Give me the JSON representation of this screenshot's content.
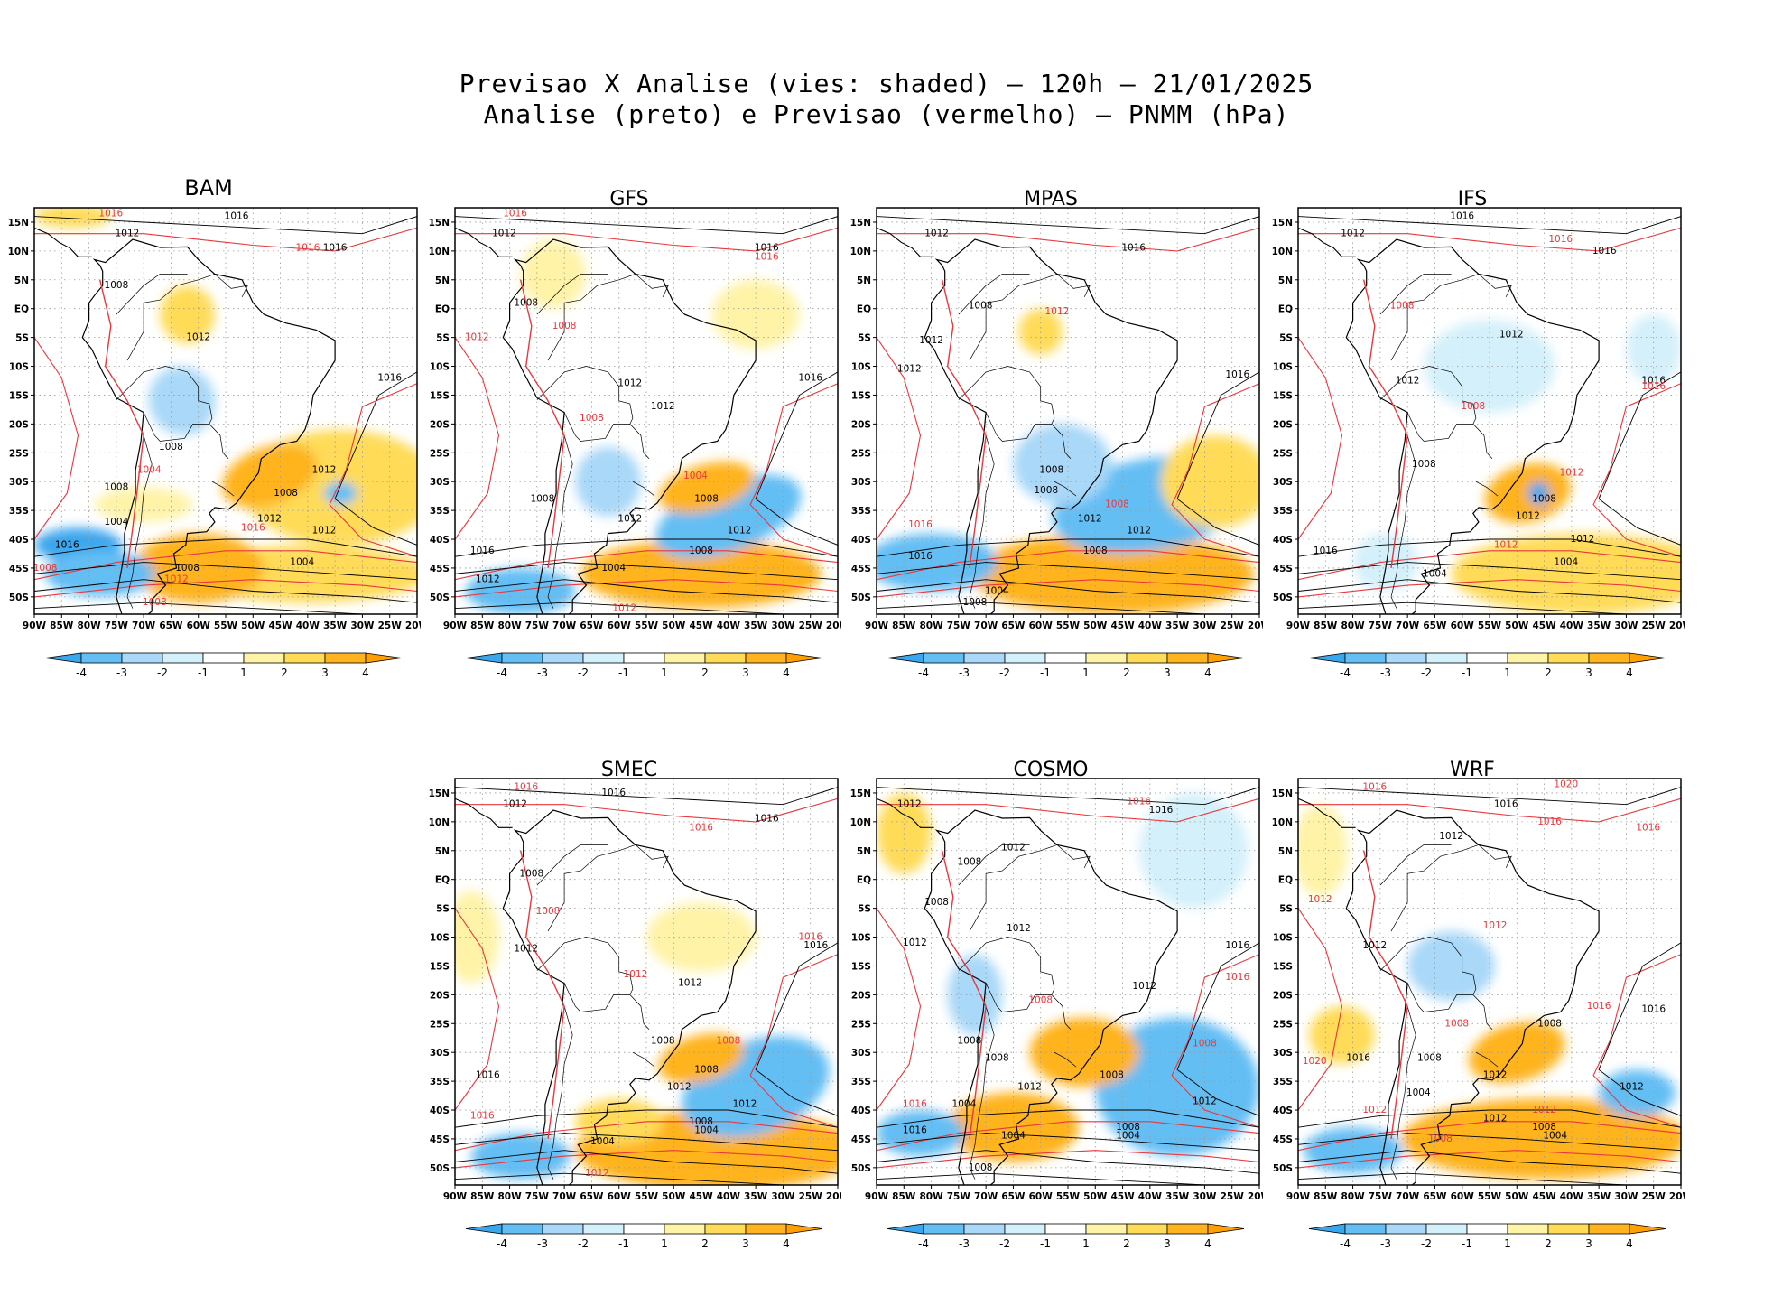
{
  "figure": {
    "title_line1": "Previsao X Analise (vies: shaded) – 120h – 21/01/2025",
    "title_line2": "Analise (preto) e Previsao (vermelho) – PNMM (hPa)"
  },
  "chart_data": {
    "type": "map-panels",
    "variable": "PNMM (hPa)",
    "shading": "vies (forecast minus analysis), hPa",
    "analysis_contours_color": "#000000",
    "forecast_contours_color": "#e8383d",
    "lat_ticks": [
      "15N",
      "10N",
      "5N",
      "EQ",
      "5S",
      "10S",
      "15S",
      "20S",
      "25S",
      "30S",
      "35S",
      "40S",
      "45S",
      "50S"
    ],
    "lon_ticks": [
      "90W",
      "85W",
      "80W",
      "75W",
      "70W",
      "65W",
      "60W",
      "55W",
      "50W",
      "45W",
      "40W",
      "35W",
      "30W",
      "25W",
      "20W"
    ],
    "colorbar": {
      "labels": [
        "-4",
        "-3",
        "-2",
        "-1",
        "1",
        "2",
        "3",
        "4"
      ],
      "colors": [
        "#3aa6ee",
        "#64bef4",
        "#a9d8f8",
        "#d4f0fb",
        "#ffffff",
        "#fff3a8",
        "#ffdb58",
        "#ffb31e",
        "#ffa000"
      ]
    },
    "panels": [
      {
        "name": "BAM",
        "labels": [
          {
            "t": "1016",
            "lon": -76,
            "lat": 16.5,
            "c": "r"
          },
          {
            "t": "1012",
            "lon": -73,
            "lat": 13,
            "c": "k"
          },
          {
            "t": "1016",
            "lon": -53,
            "lat": 16,
            "c": "k"
          },
          {
            "t": "1016",
            "lon": -40,
            "lat": 10.5,
            "c": "r"
          },
          {
            "t": "1016",
            "lon": -35,
            "lat": 10.5,
            "c": "k"
          },
          {
            "t": "1008",
            "lon": -75,
            "lat": 4,
            "c": "k"
          },
          {
            "t": "1012",
            "lon": -60,
            "lat": -5,
            "c": "k"
          },
          {
            "t": "1016",
            "lon": -25,
            "lat": -12,
            "c": "k"
          },
          {
            "t": "1008",
            "lon": -65,
            "lat": -24,
            "c": "k"
          },
          {
            "t": "1004",
            "lon": -69,
            "lat": -28,
            "c": "r"
          },
          {
            "t": "1012",
            "lon": -37,
            "lat": -28,
            "c": "k"
          },
          {
            "t": "1008",
            "lon": -44,
            "lat": -32,
            "c": "k"
          },
          {
            "t": "1008",
            "lon": -75,
            "lat": -31,
            "c": "k"
          },
          {
            "t": "1004",
            "lon": -75,
            "lat": -37,
            "c": "k"
          },
          {
            "t": "1012",
            "lon": -47,
            "lat": -36.5,
            "c": "k"
          },
          {
            "t": "1016",
            "lon": -50,
            "lat": -38,
            "c": "r"
          },
          {
            "t": "1012",
            "lon": -37,
            "lat": -38.5,
            "c": "k"
          },
          {
            "t": "1016",
            "lon": -84,
            "lat": -41,
            "c": "k"
          },
          {
            "t": "1008",
            "lon": -88,
            "lat": -45,
            "c": "r"
          },
          {
            "t": "1008",
            "lon": -62,
            "lat": -45,
            "c": "k"
          },
          {
            "t": "1012",
            "lon": -64,
            "lat": -47,
            "c": "r"
          },
          {
            "t": "1004",
            "lon": -41,
            "lat": -44,
            "c": "k"
          },
          {
            "t": "1008",
            "lon": -68,
            "lat": -51,
            "c": "r"
          }
        ]
      },
      {
        "name": "GFS",
        "labels": [
          {
            "t": "1016",
            "lon": -79,
            "lat": 16.5,
            "c": "r"
          },
          {
            "t": "1012",
            "lon": -81,
            "lat": 13,
            "c": "k"
          },
          {
            "t": "1016",
            "lon": -33,
            "lat": 10.5,
            "c": "k"
          },
          {
            "t": "1016",
            "lon": -33,
            "lat": 9,
            "c": "r"
          },
          {
            "t": "1012",
            "lon": -86,
            "lat": -5,
            "c": "r"
          },
          {
            "t": "1008",
            "lon": -77,
            "lat": 1,
            "c": "k"
          },
          {
            "t": "1008",
            "lon": -70,
            "lat": -3,
            "c": "r"
          },
          {
            "t": "1012",
            "lon": -58,
            "lat": -13,
            "c": "k"
          },
          {
            "t": "1012",
            "lon": -52,
            "lat": -17,
            "c": "k"
          },
          {
            "t": "1016",
            "lon": -25,
            "lat": -12,
            "c": "k"
          },
          {
            "t": "1008",
            "lon": -65,
            "lat": -19,
            "c": "r"
          },
          {
            "t": "1004",
            "lon": -46,
            "lat": -29,
            "c": "r"
          },
          {
            "t": "1008",
            "lon": -44,
            "lat": -33,
            "c": "k"
          },
          {
            "t": "1008",
            "lon": -74,
            "lat": -33,
            "c": "k"
          },
          {
            "t": "1012",
            "lon": -58,
            "lat": -36.5,
            "c": "k"
          },
          {
            "t": "1012",
            "lon": -38,
            "lat": -38.5,
            "c": "k"
          },
          {
            "t": "1016",
            "lon": -85,
            "lat": -42,
            "c": "k"
          },
          {
            "t": "1008",
            "lon": -45,
            "lat": -42,
            "c": "k"
          },
          {
            "t": "1004",
            "lon": -61,
            "lat": -45,
            "c": "k"
          },
          {
            "t": "1012",
            "lon": -84,
            "lat": -47,
            "c": "k"
          },
          {
            "t": "1012",
            "lon": -59,
            "lat": -52,
            "c": "r"
          }
        ]
      },
      {
        "name": "MPAS",
        "labels": [
          {
            "t": "1012",
            "lon": -79,
            "lat": 13,
            "c": "k"
          },
          {
            "t": "1016",
            "lon": -43,
            "lat": 10.5,
            "c": "k"
          },
          {
            "t": "1008",
            "lon": -71,
            "lat": 0.5,
            "c": "k"
          },
          {
            "t": "1012",
            "lon": -80,
            "lat": -5.5,
            "c": "k"
          },
          {
            "t": "1012",
            "lon": -84,
            "lat": -10.5,
            "c": "k"
          },
          {
            "t": "1012",
            "lon": -57,
            "lat": -0.5,
            "c": "r"
          },
          {
            "t": "1016",
            "lon": -24,
            "lat": -11.5,
            "c": "k"
          },
          {
            "t": "1008",
            "lon": -58,
            "lat": -28,
            "c": "k"
          },
          {
            "t": "1008",
            "lon": -59,
            "lat": -31.5,
            "c": "k"
          },
          {
            "t": "1008",
            "lon": -46,
            "lat": -34,
            "c": "r"
          },
          {
            "t": "1012",
            "lon": -51,
            "lat": -36.5,
            "c": "k"
          },
          {
            "t": "1012",
            "lon": -42,
            "lat": -38.5,
            "c": "k"
          },
          {
            "t": "1016",
            "lon": -82,
            "lat": -37.5,
            "c": "r"
          },
          {
            "t": "1016",
            "lon": -82,
            "lat": -43,
            "c": "k"
          },
          {
            "t": "1008",
            "lon": -50,
            "lat": -42,
            "c": "k"
          },
          {
            "t": "1004",
            "lon": -68,
            "lat": -49,
            "c": "k"
          },
          {
            "t": "1008",
            "lon": -72,
            "lat": -51,
            "c": "k"
          }
        ]
      },
      {
        "name": "IFS",
        "labels": [
          {
            "t": "1016",
            "lon": -60,
            "lat": 16,
            "c": "k"
          },
          {
            "t": "1012",
            "lon": -80,
            "lat": 13,
            "c": "k"
          },
          {
            "t": "1016",
            "lon": -42,
            "lat": 12,
            "c": "r"
          },
          {
            "t": "1016",
            "lon": -34,
            "lat": 10,
            "c": "k"
          },
          {
            "t": "1008",
            "lon": -71,
            "lat": 0.5,
            "c": "r"
          },
          {
            "t": "1012",
            "lon": -51,
            "lat": -4.5,
            "c": "k"
          },
          {
            "t": "1012",
            "lon": -70,
            "lat": -12.5,
            "c": "k"
          },
          {
            "t": "1016",
            "lon": -25,
            "lat": -12.5,
            "c": "k"
          },
          {
            "t": "1016",
            "lon": -25,
            "lat": -13.5,
            "c": "r"
          },
          {
            "t": "1008",
            "lon": -58,
            "lat": -17,
            "c": "r"
          },
          {
            "t": "1008",
            "lon": -67,
            "lat": -27,
            "c": "k"
          },
          {
            "t": "1012",
            "lon": -40,
            "lat": -28.5,
            "c": "r"
          },
          {
            "t": "1008",
            "lon": -45,
            "lat": -33,
            "c": "k"
          },
          {
            "t": "1012",
            "lon": -48,
            "lat": -36,
            "c": "k"
          },
          {
            "t": "1012",
            "lon": -38,
            "lat": -40,
            "c": "k"
          },
          {
            "t": "1012",
            "lon": -52,
            "lat": -41,
            "c": "r"
          },
          {
            "t": "1016",
            "lon": -85,
            "lat": -42,
            "c": "k"
          },
          {
            "t": "1004",
            "lon": -65,
            "lat": -46,
            "c": "k"
          },
          {
            "t": "1004",
            "lon": -41,
            "lat": -44,
            "c": "k"
          }
        ]
      },
      {
        "name": "SMEC",
        "labels": [
          {
            "t": "1016",
            "lon": -77,
            "lat": 16,
            "c": "r"
          },
          {
            "t": "1012",
            "lon": -79,
            "lat": 13,
            "c": "k"
          },
          {
            "t": "1016",
            "lon": -61,
            "lat": 15,
            "c": "k"
          },
          {
            "t": "1016",
            "lon": -45,
            "lat": 9,
            "c": "r"
          },
          {
            "t": "1016",
            "lon": -33,
            "lat": 10.5,
            "c": "k"
          },
          {
            "t": "1008",
            "lon": -76,
            "lat": 1,
            "c": "k"
          },
          {
            "t": "1008",
            "lon": -73,
            "lat": -5.5,
            "c": "r"
          },
          {
            "t": "1012",
            "lon": -77,
            "lat": -12,
            "c": "k"
          },
          {
            "t": "1016",
            "lon": -25,
            "lat": -10,
            "c": "r"
          },
          {
            "t": "1016",
            "lon": -24,
            "lat": -11.5,
            "c": "k"
          },
          {
            "t": "1012",
            "lon": -57,
            "lat": -16.5,
            "c": "r"
          },
          {
            "t": "1012",
            "lon": -47,
            "lat": -18,
            "c": "k"
          },
          {
            "t": "1008",
            "lon": -52,
            "lat": -28,
            "c": "k"
          },
          {
            "t": "1008",
            "lon": -40,
            "lat": -28,
            "c": "r"
          },
          {
            "t": "1008",
            "lon": -44,
            "lat": -33,
            "c": "k"
          },
          {
            "t": "1016",
            "lon": -84,
            "lat": -34,
            "c": "k"
          },
          {
            "t": "1012",
            "lon": -49,
            "lat": -36,
            "c": "k"
          },
          {
            "t": "1012",
            "lon": -37,
            "lat": -39,
            "c": "k"
          },
          {
            "t": "1016",
            "lon": -85,
            "lat": -41,
            "c": "r"
          },
          {
            "t": "1004",
            "lon": -63,
            "lat": -45.5,
            "c": "k"
          },
          {
            "t": "1008",
            "lon": -45,
            "lat": -42,
            "c": "k"
          },
          {
            "t": "1004",
            "lon": -44,
            "lat": -43.5,
            "c": "k"
          },
          {
            "t": "1012",
            "lon": -64,
            "lat": -51,
            "c": "r"
          }
        ]
      },
      {
        "name": "COSMO",
        "labels": [
          {
            "t": "1012",
            "lon": -84,
            "lat": 13,
            "c": "k"
          },
          {
            "t": "1016",
            "lon": -42,
            "lat": 13.5,
            "c": "r"
          },
          {
            "t": "1016",
            "lon": -38,
            "lat": 12,
            "c": "k"
          },
          {
            "t": "1008",
            "lon": -73,
            "lat": 3,
            "c": "k"
          },
          {
            "t": "1012",
            "lon": -65,
            "lat": 5.5,
            "c": "k"
          },
          {
            "t": "1008",
            "lon": -79,
            "lat": -4,
            "c": "k"
          },
          {
            "t": "1012",
            "lon": -83,
            "lat": -11,
            "c": "k"
          },
          {
            "t": "1012",
            "lon": -64,
            "lat": -8.5,
            "c": "k"
          },
          {
            "t": "1016",
            "lon": -24,
            "lat": -11.5,
            "c": "k"
          },
          {
            "t": "1016",
            "lon": -24,
            "lat": -17,
            "c": "r"
          },
          {
            "t": "1012",
            "lon": -41,
            "lat": -18.5,
            "c": "k"
          },
          {
            "t": "1008",
            "lon": -60,
            "lat": -21,
            "c": "r"
          },
          {
            "t": "1008",
            "lon": -73,
            "lat": -28,
            "c": "k"
          },
          {
            "t": "1008",
            "lon": -68,
            "lat": -31,
            "c": "k"
          },
          {
            "t": "1008",
            "lon": -47,
            "lat": -34,
            "c": "k"
          },
          {
            "t": "1012",
            "lon": -62,
            "lat": -36,
            "c": "k"
          },
          {
            "t": "1008",
            "lon": -30,
            "lat": -28.5,
            "c": "r"
          },
          {
            "t": "1012",
            "lon": -30,
            "lat": -38.5,
            "c": "k"
          },
          {
            "t": "1004",
            "lon": -74,
            "lat": -39,
            "c": "k"
          },
          {
            "t": "1016",
            "lon": -83,
            "lat": -39,
            "c": "r"
          },
          {
            "t": "1016",
            "lon": -83,
            "lat": -43.5,
            "c": "k"
          },
          {
            "t": "1008",
            "lon": -44,
            "lat": -43,
            "c": "k"
          },
          {
            "t": "1004",
            "lon": -44,
            "lat": -44.5,
            "c": "k"
          },
          {
            "t": "1004",
            "lon": -65,
            "lat": -44.5,
            "c": "k"
          },
          {
            "t": "1008",
            "lon": -71,
            "lat": -50,
            "c": "k"
          }
        ]
      },
      {
        "name": "WRF",
        "labels": [
          {
            "t": "1020",
            "lon": -41,
            "lat": 16.5,
            "c": "r"
          },
          {
            "t": "1016",
            "lon": -76,
            "lat": 16,
            "c": "r"
          },
          {
            "t": "1016",
            "lon": -52,
            "lat": 13,
            "c": "k"
          },
          {
            "t": "1016",
            "lon": -44,
            "lat": 10,
            "c": "r"
          },
          {
            "t": "1016",
            "lon": -26,
            "lat": 9,
            "c": "r"
          },
          {
            "t": "1012",
            "lon": -62,
            "lat": 7.5,
            "c": "k"
          },
          {
            "t": "1012",
            "lon": -86,
            "lat": -3.5,
            "c": "r"
          },
          {
            "t": "1012",
            "lon": -76,
            "lat": -11.5,
            "c": "k"
          },
          {
            "t": "1012",
            "lon": -54,
            "lat": -8,
            "c": "r"
          },
          {
            "t": "1016",
            "lon": -35,
            "lat": -22,
            "c": "r"
          },
          {
            "t": "1016",
            "lon": -25,
            "lat": -22.5,
            "c": "k"
          },
          {
            "t": "1008",
            "lon": -61,
            "lat": -25,
            "c": "r"
          },
          {
            "t": "1008",
            "lon": -44,
            "lat": -25,
            "c": "k"
          },
          {
            "t": "1020",
            "lon": -87,
            "lat": -31.5,
            "c": "r"
          },
          {
            "t": "1016",
            "lon": -79,
            "lat": -31,
            "c": "k"
          },
          {
            "t": "1008",
            "lon": -66,
            "lat": -31,
            "c": "k"
          },
          {
            "t": "1012",
            "lon": -54,
            "lat": -34,
            "c": "k"
          },
          {
            "t": "1012",
            "lon": -29,
            "lat": -36,
            "c": "k"
          },
          {
            "t": "1004",
            "lon": -68,
            "lat": -37,
            "c": "k"
          },
          {
            "t": "1012",
            "lon": -45,
            "lat": -40,
            "c": "r"
          },
          {
            "t": "1012",
            "lon": -76,
            "lat": -40,
            "c": "r"
          },
          {
            "t": "1012",
            "lon": -54,
            "lat": -41.5,
            "c": "k"
          },
          {
            "t": "1008",
            "lon": -45,
            "lat": -43,
            "c": "k"
          },
          {
            "t": "1004",
            "lon": -43,
            "lat": -44.5,
            "c": "k"
          },
          {
            "t": "1008",
            "lon": -64,
            "lat": -45,
            "c": "r"
          }
        ]
      }
    ]
  }
}
